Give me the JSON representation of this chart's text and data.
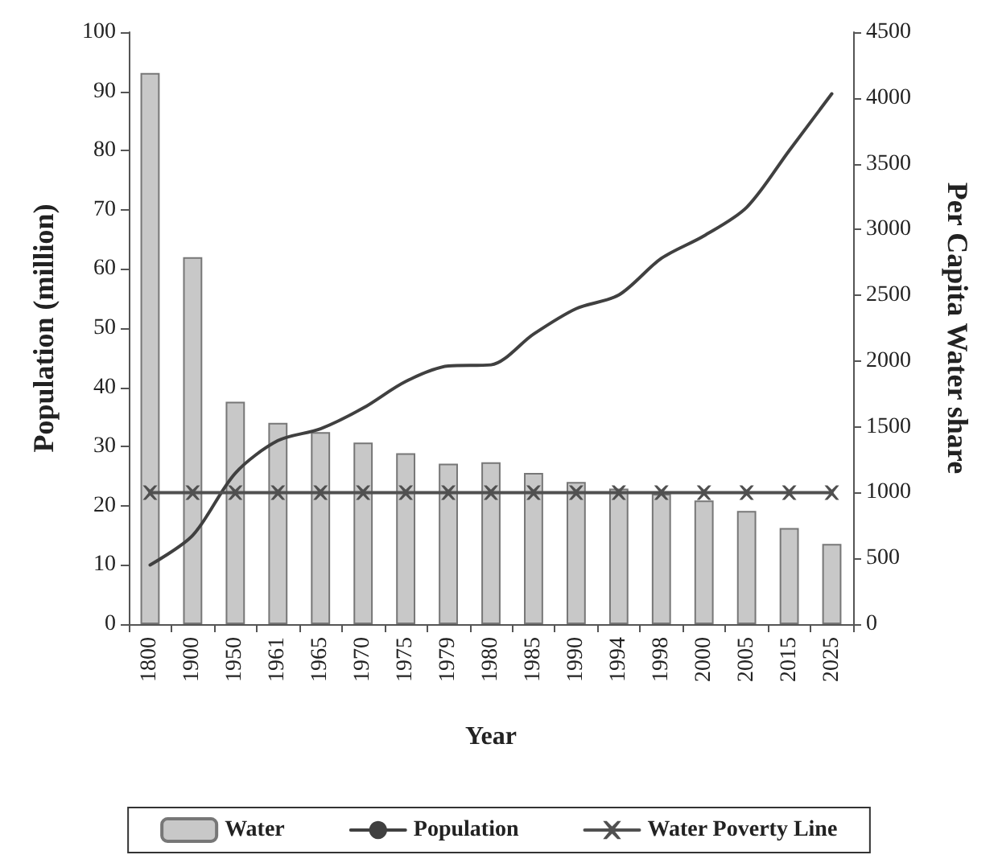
{
  "chart_data": {
    "type": "bar",
    "xlabel": "Year",
    "ylabel": "Population (million)",
    "y2label": "Per Capita Water share",
    "categories": [
      "1800",
      "1900",
      "1950",
      "1961",
      "1965",
      "1970",
      "1975",
      "1979",
      "1980",
      "1985",
      "1990",
      "1994",
      "1998",
      "2000",
      "2005",
      "2015",
      "2025"
    ],
    "series": [
      {
        "name": "Water",
        "axis": "y2",
        "color": "#c8c8c8",
        "values": [
          4190,
          2790,
          1690,
          1530,
          1460,
          1380,
          1300,
          1220,
          1230,
          1150,
          1080,
          1030,
          990,
          940,
          860,
          730,
          610
        ]
      },
      {
        "name": "Population",
        "type": "line",
        "axis": "y",
        "color": "#404040",
        "marker": "none",
        "values": [
          10,
          15,
          25.5,
          31,
          33,
          36.5,
          41,
          43.6,
          43.8,
          49,
          53.3,
          55.6,
          61.8,
          65.6,
          70.4,
          80,
          89.6
        ]
      },
      {
        "name": "Water Poverty Line",
        "type": "line",
        "axis": "y2",
        "color": "#505050",
        "marker": "cross",
        "values": [
          1000,
          1000,
          1000,
          1000,
          1000,
          1000,
          1000,
          1000,
          1000,
          1000,
          1000,
          1000,
          1000,
          1000,
          1000,
          1000,
          1000
        ]
      }
    ],
    "ylim": [
      0,
      100
    ],
    "yticks": [
      0,
      10,
      20,
      30,
      40,
      50,
      60,
      70,
      80,
      90,
      100
    ],
    "y2lim": [
      0,
      4500
    ],
    "y2ticks": [
      0,
      500,
      1000,
      1500,
      2000,
      2500,
      3000,
      3500,
      4000,
      4500
    ],
    "legend": "bottom",
    "grid": false
  }
}
